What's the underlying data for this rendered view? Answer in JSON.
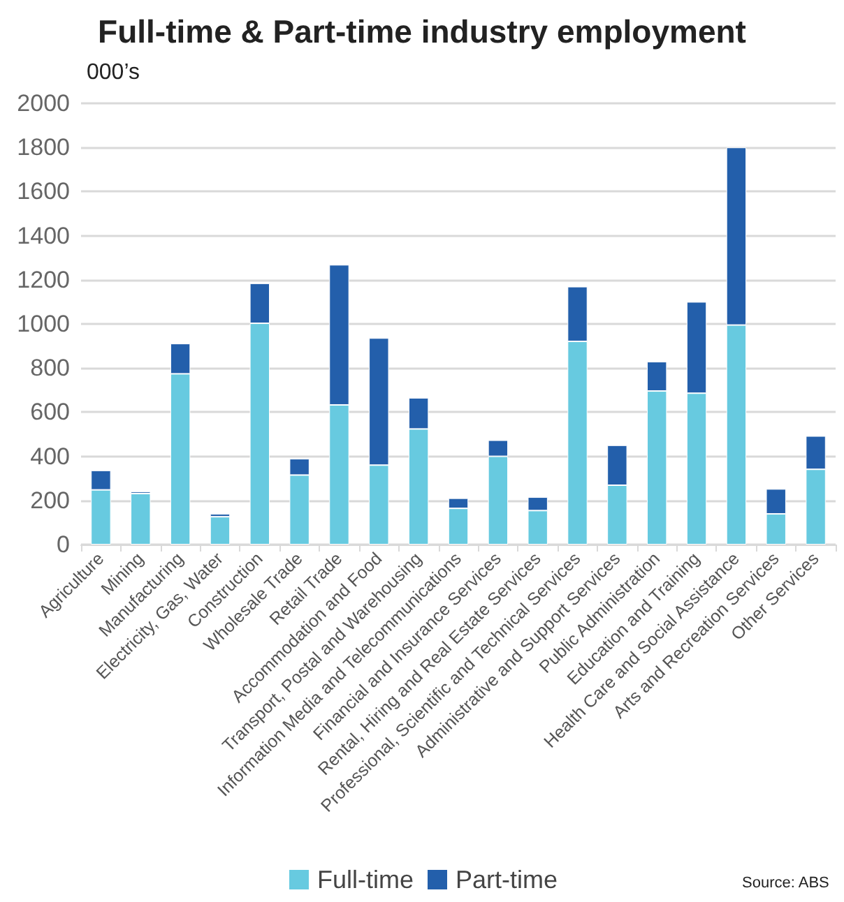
{
  "chart_data": {
    "type": "bar",
    "title": "Full-time & Part-time industry employment",
    "ylabel": "000’s",
    "stacked": true,
    "categories": [
      "Agriculture",
      "Mining",
      "Manufacturing",
      "Electricity, Gas, Water",
      "Construction",
      "Wholesale Trade",
      "Retail Trade",
      "Accommodation and Food",
      "Transport, Postal and Warehousing",
      "Information Media and Telecommunications",
      "Financial and Insurance Services",
      "Rental, Hiring and Real Estate Services",
      "Professional, Scientific and Technical Services",
      "Administrative and Support Services",
      "Public Administration",
      "Education and Training",
      "Health Care and Social Assistance",
      "Arts and Recreation Services",
      "Other Services"
    ],
    "series": [
      {
        "name": "Full-time",
        "color": "#67cae0",
        "values": [
          248,
          231,
          774,
          126,
          1003,
          315,
          633,
          360,
          524,
          164,
          400,
          154,
          921,
          269,
          696,
          686,
          995,
          139,
          341
        ]
      },
      {
        "name": "Part-time",
        "color": "#235fab",
        "values": [
          88,
          9,
          137,
          13,
          181,
          74,
          635,
          576,
          141,
          46,
          73,
          61,
          248,
          181,
          133,
          414,
          805,
          113,
          151
        ]
      }
    ],
    "ylim": [
      0,
      2000
    ],
    "yticks": [
      0,
      200,
      400,
      600,
      800,
      1000,
      1200,
      1400,
      1600,
      1800,
      2000
    ],
    "grid": "y",
    "legend": "bottom",
    "annotations": [
      "Source: ABS"
    ]
  }
}
